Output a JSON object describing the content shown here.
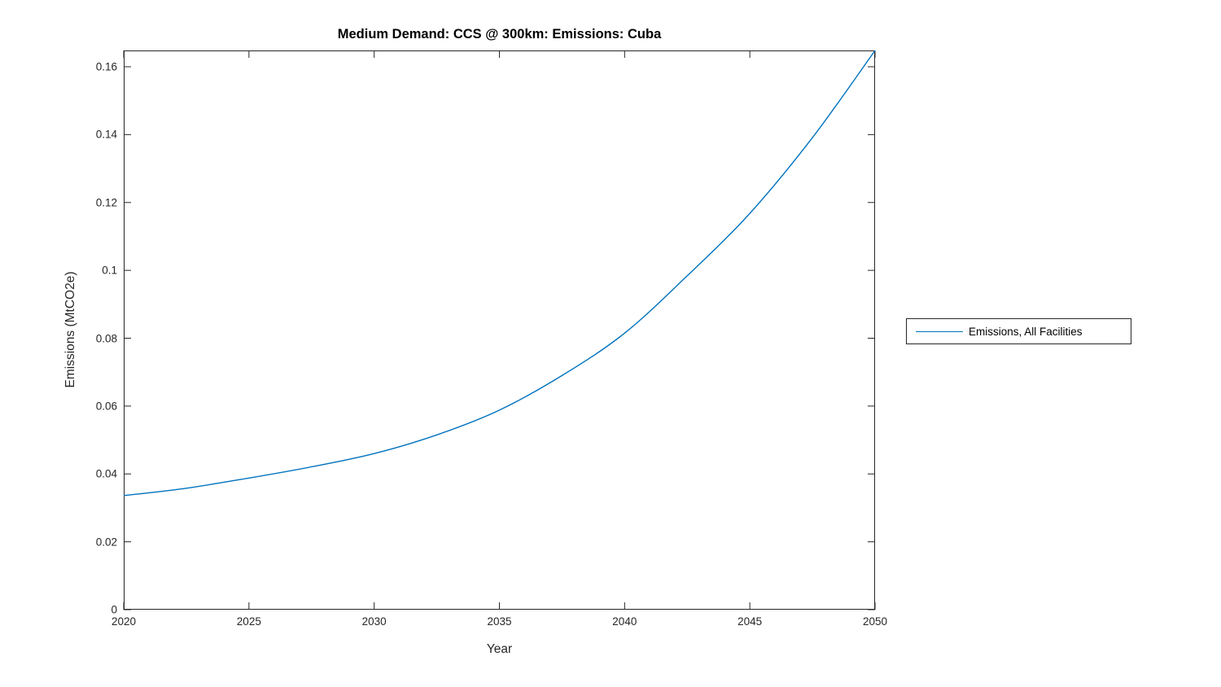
{
  "chart_data": {
    "type": "line",
    "title": "Medium Demand: CCS @ 300km: Emissions: Cuba",
    "xlabel": "Year",
    "ylabel": "Emissions (MtCO2e)",
    "xlim": [
      2020,
      2050
    ],
    "ylim": [
      0,
      0.1648
    ],
    "xticks": [
      2020,
      2025,
      2030,
      2035,
      2040,
      2045,
      2050
    ],
    "xtick_labels": [
      "2020",
      "2025",
      "2030",
      "2035",
      "2040",
      "2045",
      "2050"
    ],
    "yticks": [
      0,
      0.02,
      0.04,
      0.06,
      0.08,
      0.1,
      0.12,
      0.14,
      0.16
    ],
    "ytick_labels": [
      "0",
      "0.02",
      "0.04",
      "0.06",
      "0.08",
      "0.1",
      "0.12",
      "0.14",
      "0.16"
    ],
    "grid": false,
    "legend": {
      "position": "right-outside",
      "entries": [
        {
          "label": "Emissions, All Facilities",
          "color": "#0072BD"
        }
      ]
    },
    "series": [
      {
        "name": "Emissions, All Facilities",
        "color": "#0072BD",
        "x": [
          2020,
          2022.5,
          2025,
          2027.5,
          2030,
          2032.5,
          2035,
          2037.5,
          2040,
          2042.5,
          2045,
          2047.5,
          2050
        ],
        "y": [
          0.0336,
          0.0358,
          0.0388,
          0.0421,
          0.046,
          0.0515,
          0.0588,
          0.069,
          0.0815,
          0.0984,
          0.1168,
          0.1391,
          0.1648
        ]
      }
    ]
  },
  "colors": {
    "line": "#0072BD",
    "axis": "#262626",
    "text": "#262626",
    "title": "#000000",
    "background": "#ffffff"
  }
}
